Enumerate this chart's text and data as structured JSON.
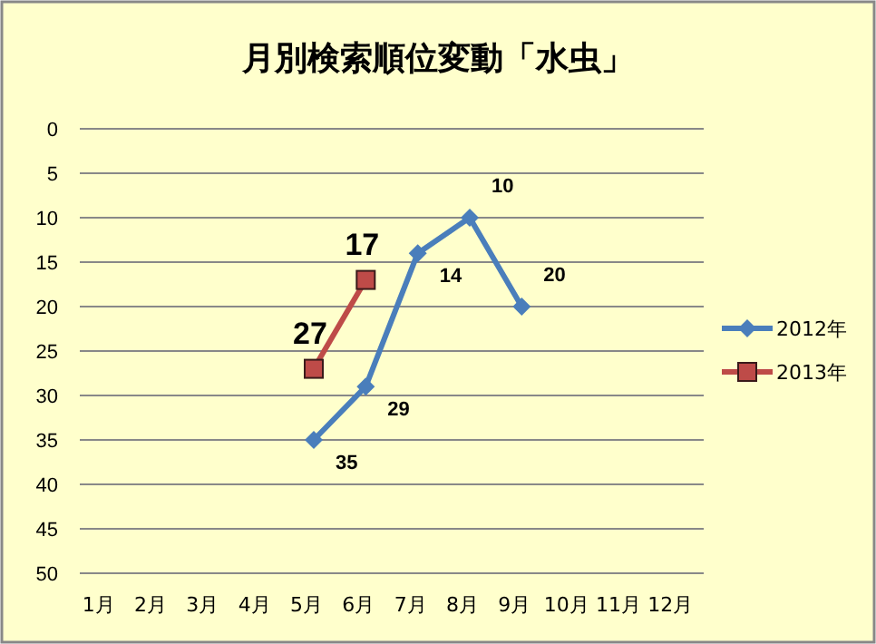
{
  "chart_data": {
    "type": "line",
    "title": "月別検索順位変動「水虫」",
    "categories": [
      "1月",
      "2月",
      "3月",
      "4月",
      "5月",
      "6月",
      "7月",
      "8月",
      "9月",
      "10月",
      "11月",
      "12月"
    ],
    "series": [
      {
        "name": "2012年",
        "color": "#4a7ebb",
        "marker": "diamond",
        "values": [
          null,
          null,
          null,
          null,
          35,
          29,
          14,
          10,
          20,
          null,
          null,
          null
        ],
        "value_labels": [
          null,
          null,
          null,
          null,
          "35",
          "29",
          "14",
          "10",
          "20",
          null,
          null,
          null
        ]
      },
      {
        "name": "2013年",
        "color": "#be4b48",
        "marker": "square",
        "values": [
          null,
          null,
          null,
          null,
          27,
          17,
          null,
          null,
          null,
          null,
          null,
          null
        ],
        "value_labels": [
          null,
          null,
          null,
          null,
          "27",
          "17",
          null,
          null,
          null,
          null,
          null,
          null
        ]
      }
    ],
    "ylim": [
      50,
      0
    ],
    "yticks": [
      0,
      5,
      10,
      15,
      20,
      25,
      30,
      35,
      40,
      45,
      50
    ],
    "grid": "y",
    "legend": "right"
  }
}
